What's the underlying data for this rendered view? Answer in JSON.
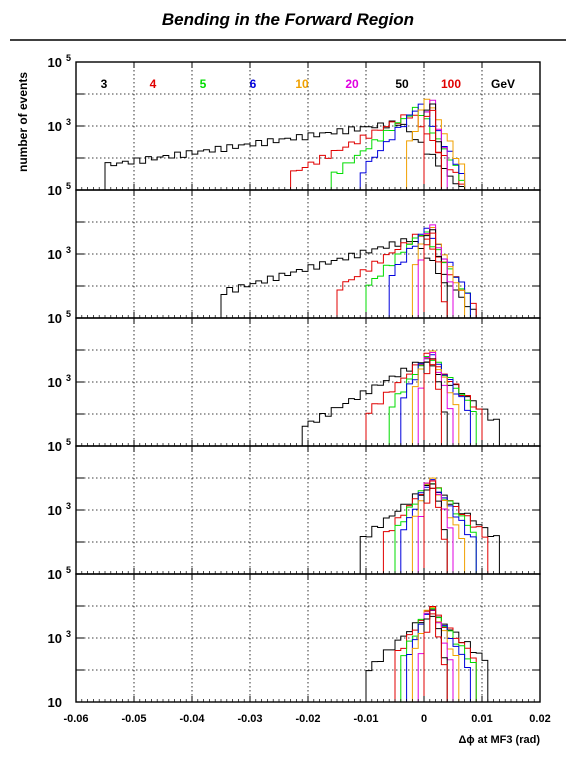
{
  "chart_data": {
    "type": "histogram",
    "title": "Bending in the Forward Region",
    "xlabel": "Δϕ at MF3 (rad)",
    "ylabel": "number of events",
    "xlim": [
      -0.06,
      0.02
    ],
    "x_ticks": [
      "-0.06",
      "-0.05",
      "-0.04",
      "-0.03",
      "-0.02",
      "-0.01",
      "0",
      "0.01",
      "0.02"
    ],
    "y_scale": "log",
    "ylim": [
      10,
      100000
    ],
    "y_tick_labels": [
      {
        "base": "10",
        "exp": "5"
      },
      {
        "base": "10",
        "exp": "3"
      },
      {
        "base": "10",
        "exp": ""
      }
    ],
    "grid": true,
    "bin_width": 0.001,
    "legend_unit": "GeV",
    "series": [
      {
        "name": "3",
        "color": "#000000"
      },
      {
        "name": "4",
        "color": "#e00000"
      },
      {
        "name": "5",
        "color": "#00dd00"
      },
      {
        "name": "6",
        "color": "#0000dd"
      },
      {
        "name": "10",
        "color": "#f0a000"
      },
      {
        "name": "20",
        "color": "#e000e0"
      },
      {
        "name": "50",
        "color": "#000000"
      },
      {
        "name": "100",
        "color": "#e00000"
      }
    ],
    "panels": [
      {
        "series": [
          {
            "name": "3",
            "peak_x": -0.004,
            "peak": 1300,
            "lo": -0.0545,
            "hi": 0.009,
            "left_decay": 0.0165,
            "right_decay": 0.0022
          },
          {
            "name": "4",
            "peak_x": -0.002,
            "peak": 2500,
            "lo": -0.023,
            "hi": 0.007,
            "left_decay": 0.0048,
            "right_decay": 0.0017
          },
          {
            "name": "5",
            "peak_x": -0.001,
            "peak": 3800,
            "lo": -0.016,
            "hi": 0.0065,
            "left_decay": 0.003,
            "right_decay": 0.0015
          },
          {
            "name": "6",
            "peak_x": -0.0005,
            "peak": 5000,
            "lo": -0.011,
            "hi": 0.0065,
            "left_decay": 0.0021,
            "right_decay": 0.0014
          },
          {
            "name": "10",
            "peak_x": 0.0005,
            "peak": 8000,
            "lo": -0.003,
            "hi": 0.0065,
            "left_decay": 0.0009,
            "right_decay": 0.0012
          },
          {
            "name": "20",
            "peak_x": 0.001,
            "peak": 12000,
            "lo": 0.0,
            "hi": 0.004,
            "left_decay": 0.0004,
            "right_decay": 0.0006
          },
          {
            "name": "50",
            "peak_x": 0.001,
            "peak": 16000,
            "lo": 0.0,
            "hi": 0.003,
            "left_decay": 0.0003,
            "right_decay": 0.0004
          },
          {
            "name": "100",
            "peak_x": 0.001,
            "peak": 20000,
            "lo": 0.0,
            "hi": 0.0025,
            "left_decay": 0.0002,
            "right_decay": 0.0003
          }
        ]
      },
      {
        "series": [
          {
            "name": "3",
            "peak_x": -0.002,
            "peak": 3000,
            "lo": -0.0345,
            "hi": 0.009,
            "left_decay": 0.0085,
            "right_decay": 0.002
          },
          {
            "name": "4",
            "peak_x": -0.0005,
            "peak": 4500,
            "lo": -0.015,
            "hi": 0.0085,
            "left_decay": 0.0036,
            "right_decay": 0.0018
          },
          {
            "name": "5",
            "peak_x": 0.0,
            "peak": 5500,
            "lo": -0.0095,
            "hi": 0.008,
            "left_decay": 0.0024,
            "right_decay": 0.0016
          },
          {
            "name": "6",
            "peak_x": 0.0005,
            "peak": 6500,
            "lo": -0.0065,
            "hi": 0.0075,
            "left_decay": 0.0018,
            "right_decay": 0.0015
          },
          {
            "name": "10",
            "peak_x": 0.001,
            "peak": 9000,
            "lo": -0.002,
            "hi": 0.0065,
            "left_decay": 0.0009,
            "right_decay": 0.0011
          },
          {
            "name": "20",
            "peak_x": 0.001,
            "peak": 13000,
            "lo": -0.0005,
            "hi": 0.005,
            "left_decay": 0.0005,
            "right_decay": 0.0008
          },
          {
            "name": "50",
            "peak_x": 0.001,
            "peak": 17000,
            "lo": 0.0,
            "hi": 0.004,
            "left_decay": 0.0003,
            "right_decay": 0.0005
          },
          {
            "name": "100",
            "peak_x": 0.001,
            "peak": 20000,
            "lo": 0.0,
            "hi": 0.0035,
            "left_decay": 0.0002,
            "right_decay": 0.0004
          }
        ]
      },
      {
        "series": [
          {
            "name": "3",
            "peak_x": 0.0,
            "peak": 5000,
            "lo": -0.0205,
            "hi": 0.0125,
            "left_decay": 0.0043,
            "right_decay": 0.0028
          },
          {
            "name": "4",
            "peak_x": 0.0005,
            "peak": 6500,
            "lo": -0.01,
            "hi": 0.0105,
            "left_decay": 0.0025,
            "right_decay": 0.0023
          },
          {
            "name": "5",
            "peak_x": 0.001,
            "peak": 7500,
            "lo": -0.0065,
            "hi": 0.009,
            "left_decay": 0.0018,
            "right_decay": 0.0019
          },
          {
            "name": "6",
            "peak_x": 0.001,
            "peak": 9000,
            "lo": -0.0045,
            "hi": 0.008,
            "left_decay": 0.0014,
            "right_decay": 0.0016
          },
          {
            "name": "10",
            "peak_x": 0.001,
            "peak": 12000,
            "lo": -0.002,
            "hi": 0.006,
            "left_decay": 0.0009,
            "right_decay": 0.0011
          },
          {
            "name": "20",
            "peak_x": 0.001,
            "peak": 15000,
            "lo": -0.0005,
            "hi": 0.0045,
            "left_decay": 0.0005,
            "right_decay": 0.0008
          },
          {
            "name": "50",
            "peak_x": 0.001,
            "peak": 18000,
            "lo": 0.0,
            "hi": 0.0035,
            "left_decay": 0.0003,
            "right_decay": 0.0005
          },
          {
            "name": "100",
            "peak_x": 0.001,
            "peak": 21000,
            "lo": 0.0,
            "hi": 0.003,
            "left_decay": 0.0002,
            "right_decay": 0.0004
          }
        ]
      },
      {
        "series": [
          {
            "name": "3",
            "peak_x": 0.001,
            "peak": 6000,
            "lo": -0.0115,
            "hi": 0.0125,
            "left_decay": 0.003,
            "right_decay": 0.003
          },
          {
            "name": "4",
            "peak_x": 0.001,
            "peak": 7500,
            "lo": -0.007,
            "hi": 0.011,
            "left_decay": 0.002,
            "right_decay": 0.0025
          },
          {
            "name": "5",
            "peak_x": 0.001,
            "peak": 9000,
            "lo": -0.005,
            "hi": 0.0095,
            "left_decay": 0.0016,
            "right_decay": 0.002
          },
          {
            "name": "6",
            "peak_x": 0.001,
            "peak": 10000,
            "lo": -0.0035,
            "hi": 0.0085,
            "left_decay": 0.0012,
            "right_decay": 0.0017
          },
          {
            "name": "10",
            "peak_x": 0.001,
            "peak": 13000,
            "lo": -0.0015,
            "hi": 0.0065,
            "left_decay": 0.0008,
            "right_decay": 0.0012
          },
          {
            "name": "20",
            "peak_x": 0.001,
            "peak": 16000,
            "lo": -0.0005,
            "hi": 0.005,
            "left_decay": 0.0005,
            "right_decay": 0.0009
          },
          {
            "name": "50",
            "peak_x": 0.001,
            "peak": 19000,
            "lo": 0.0,
            "hi": 0.004,
            "left_decay": 0.0003,
            "right_decay": 0.0006
          },
          {
            "name": "100",
            "peak_x": 0.001,
            "peak": 22000,
            "lo": 0.0,
            "hi": 0.0035,
            "left_decay": 0.0002,
            "right_decay": 0.0005
          }
        ]
      },
      {
        "series": [
          {
            "name": "3",
            "peak_x": 0.001,
            "peak": 7000,
            "lo": -0.0095,
            "hi": 0.0115,
            "left_decay": 0.0025,
            "right_decay": 0.0027
          },
          {
            "name": "4",
            "peak_x": 0.001,
            "peak": 8500,
            "lo": -0.0055,
            "hi": 0.0095,
            "left_decay": 0.0017,
            "right_decay": 0.0022
          },
          {
            "name": "5",
            "peak_x": 0.001,
            "peak": 10000,
            "lo": -0.004,
            "hi": 0.0085,
            "left_decay": 0.0013,
            "right_decay": 0.0018
          },
          {
            "name": "6",
            "peak_x": 0.001,
            "peak": 11000,
            "lo": -0.003,
            "hi": 0.0075,
            "left_decay": 0.001,
            "right_decay": 0.0015
          },
          {
            "name": "10",
            "peak_x": 0.001,
            "peak": 14000,
            "lo": -0.0015,
            "hi": 0.006,
            "left_decay": 0.0007,
            "right_decay": 0.0011
          },
          {
            "name": "20",
            "peak_x": 0.001,
            "peak": 17000,
            "lo": -0.0005,
            "hi": 0.0045,
            "left_decay": 0.0004,
            "right_decay": 0.0008
          },
          {
            "name": "50",
            "peak_x": 0.001,
            "peak": 20000,
            "lo": 0.0,
            "hi": 0.004,
            "left_decay": 0.0003,
            "right_decay": 0.0006
          },
          {
            "name": "100",
            "peak_x": 0.001,
            "peak": 23000,
            "lo": 0.0,
            "hi": 0.0035,
            "left_decay": 0.0002,
            "right_decay": 0.0005
          }
        ]
      }
    ]
  }
}
